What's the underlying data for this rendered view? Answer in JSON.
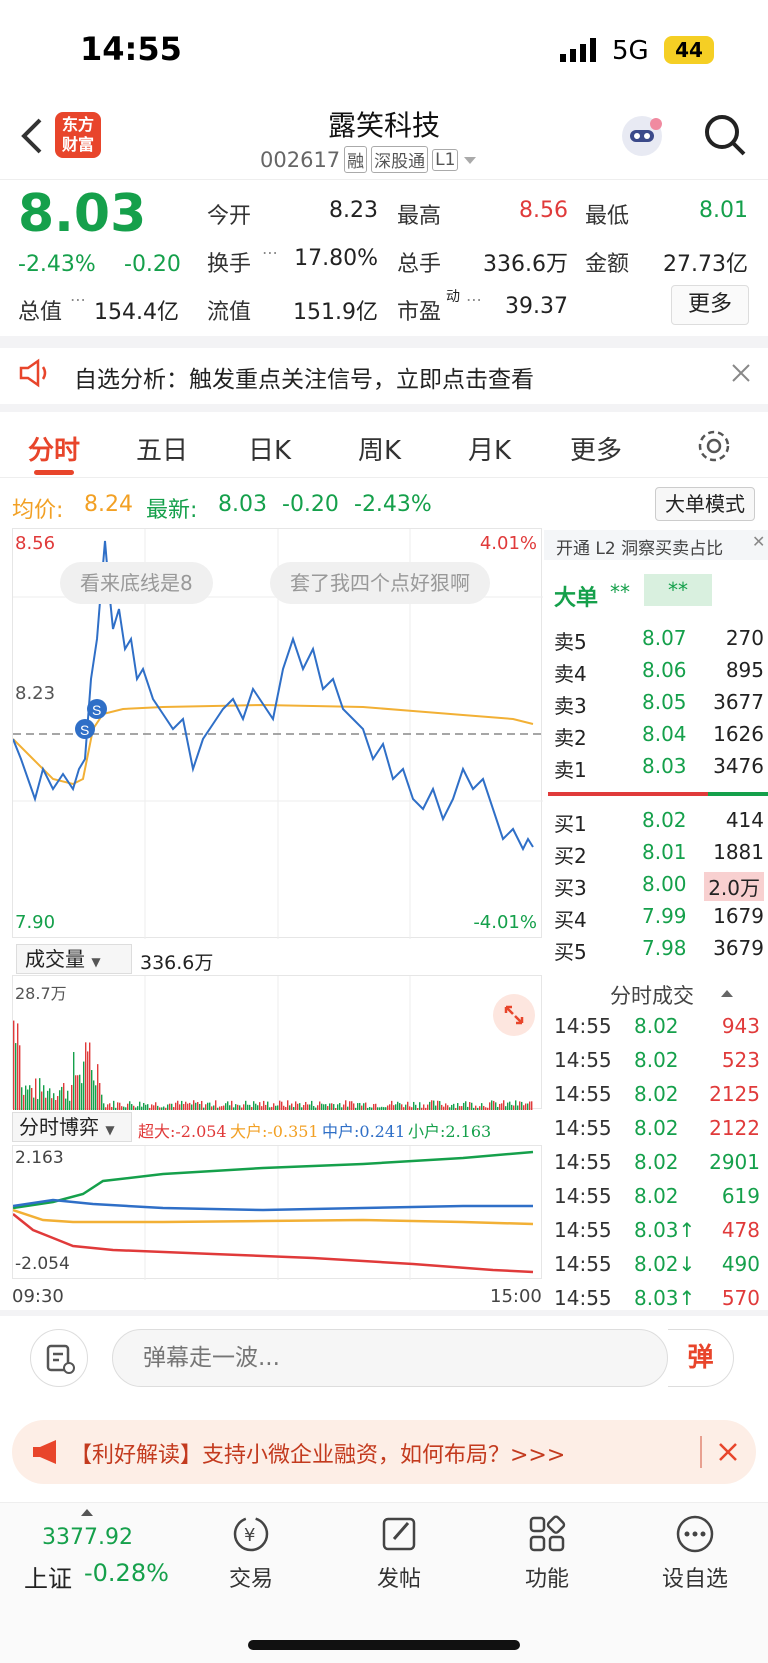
{
  "status": {
    "time": "14:55",
    "network": "5G",
    "battery": "44"
  },
  "header": {
    "logo": "东方财富",
    "title": "露笑科技",
    "code": "002617",
    "tags": [
      "融",
      "深股通",
      "L1"
    ]
  },
  "quote": {
    "price": "8.03",
    "change_pct": "-2.43%",
    "change": "-0.20",
    "fields": [
      {
        "label": "今开",
        "value": "8.23"
      },
      {
        "label": "最高",
        "value": "8.56"
      },
      {
        "label": "最低",
        "value": "8.01"
      },
      {
        "label": "换手",
        "value": "17.80%"
      },
      {
        "label": "总手",
        "value": "336.6万"
      },
      {
        "label": "金额",
        "value": "27.73亿"
      },
      {
        "label": "总值",
        "value": "154.4亿"
      },
      {
        "label": "流值",
        "value": "151.9亿"
      },
      {
        "label": "市盈",
        "value": "39.37",
        "sup": "动"
      }
    ],
    "more": "更多"
  },
  "notice": {
    "text": "自选分析：触发重点关注信号，立即点击查看"
  },
  "tabs": [
    "分时",
    "五日",
    "日K",
    "周K",
    "月K",
    "更多"
  ],
  "avgbar": {
    "avg_label": "均价:",
    "avg": "8.24",
    "latest_label": "最新:",
    "latest": "8.03",
    "chg": "-0.20",
    "pct": "-2.43%",
    "mode": "大单模式"
  },
  "chart": {
    "high": "8.56",
    "low": "7.90",
    "ref": "8.23",
    "up_pct": "4.01%",
    "down_pct": "-4.01%",
    "danmu": [
      "看来底线是8",
      "套了我四个点好狠啊"
    ]
  },
  "orderbook": {
    "banner": "开通 L2 洞察买卖占比",
    "big": "大单",
    "big_v1": "**",
    "big_v2": "**",
    "asks": [
      {
        "n": "卖5",
        "p": "8.07",
        "q": "270"
      },
      {
        "n": "卖4",
        "p": "8.06",
        "q": "895"
      },
      {
        "n": "卖3",
        "p": "8.05",
        "q": "3677"
      },
      {
        "n": "卖2",
        "p": "8.04",
        "q": "1626"
      },
      {
        "n": "卖1",
        "p": "8.03",
        "q": "3476"
      }
    ],
    "bids": [
      {
        "n": "买1",
        "p": "8.02",
        "q": "414"
      },
      {
        "n": "买2",
        "p": "8.01",
        "q": "1881"
      },
      {
        "n": "买3",
        "p": "8.00",
        "q": "2.0万"
      },
      {
        "n": "买4",
        "p": "7.99",
        "q": "1679"
      },
      {
        "n": "买5",
        "p": "7.98",
        "q": "3679"
      }
    ]
  },
  "ticks": {
    "title": "分时成交",
    "rows": [
      {
        "t": "14:55",
        "p": "8.02",
        "q": "943",
        "c": "red"
      },
      {
        "t": "14:55",
        "p": "8.02",
        "q": "523",
        "c": "red"
      },
      {
        "t": "14:55",
        "p": "8.02",
        "q": "2125",
        "c": "red"
      },
      {
        "t": "14:55",
        "p": "8.02",
        "q": "2122",
        "c": "red"
      },
      {
        "t": "14:55",
        "p": "8.02",
        "q": "2901",
        "c": "green"
      },
      {
        "t": "14:55",
        "p": "8.02",
        "q": "619",
        "c": "green"
      },
      {
        "t": "14:55",
        "p": "8.03↑",
        "q": "478",
        "c": "red"
      },
      {
        "t": "14:55",
        "p": "8.02↓",
        "q": "490",
        "c": "green"
      },
      {
        "t": "14:55",
        "p": "8.03↑",
        "q": "570",
        "c": "red"
      }
    ]
  },
  "volume": {
    "label": "成交量",
    "total": "336.6万",
    "max": "28.7万"
  },
  "game": {
    "label": "分时博弈",
    "super": "超大:-2.054",
    "big": "大户:-0.351",
    "mid": "中户:0.241",
    "small": "小户:2.163",
    "top": "2.163",
    "bottom": "-2.054",
    "start": "09:30",
    "end": "15:00"
  },
  "input": {
    "placeholder": "弹幕走一波...",
    "danmu_btn": "弹"
  },
  "ad": {
    "text": "【利好解读】支持小微企业融资，如何布局？>>>"
  },
  "nav": {
    "index_value": "3377.92",
    "index_name": "上证",
    "index_pct": "-0.28%",
    "items": [
      "交易",
      "发帖",
      "功能",
      "设自选"
    ]
  }
}
